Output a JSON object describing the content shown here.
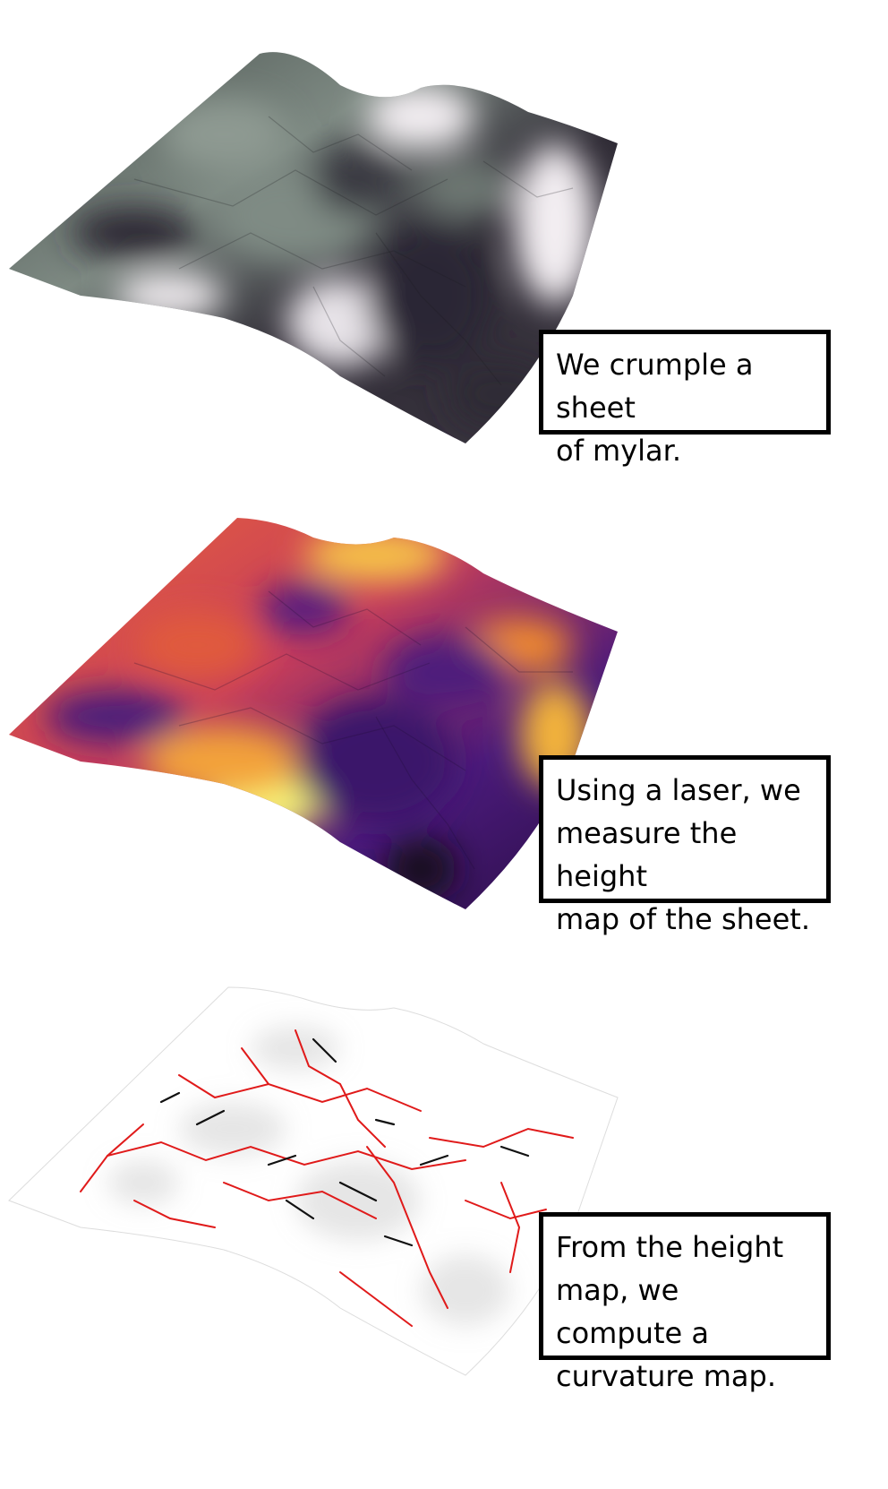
{
  "steps": [
    {
      "caption": "We crumple a sheet\nof mylar.",
      "surface": "grayscale height render",
      "colors": [
        "#2f2b35",
        "#5a6460",
        "#8e9a92",
        "#f3eef2"
      ]
    },
    {
      "caption": "Using a laser, we\nmeasure the height\nmap of the sheet.",
      "surface": "inferno colormap height map",
      "colors": [
        "#12081f",
        "#4a1a7a",
        "#e8633a",
        "#f8f87a"
      ]
    },
    {
      "caption": "From the height\nmap, we compute a\ncurvature map.",
      "surface": "curvature map",
      "colors": [
        "#ffffff",
        "#111111",
        "#e01a1a"
      ]
    }
  ]
}
